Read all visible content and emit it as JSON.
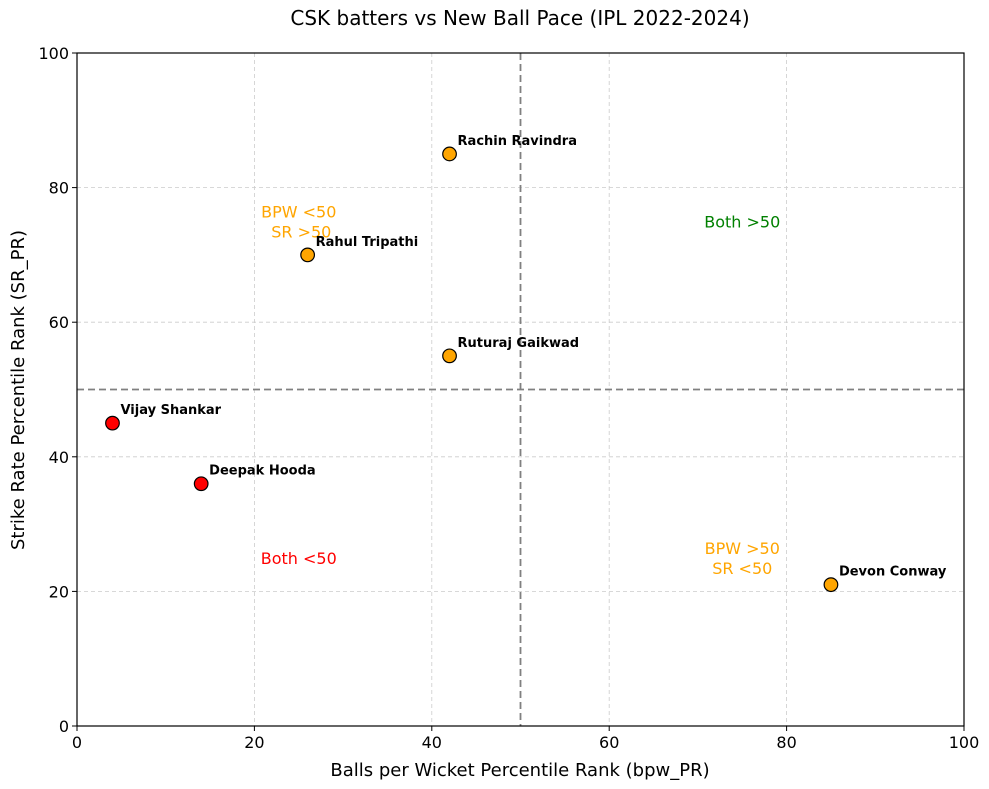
{
  "chart_data": {
    "type": "scatter",
    "title": "CSK batters vs New Ball Pace (IPL 2022-2024)",
    "xlabel": "Balls per Wicket Percentile Rank (bpw_PR)",
    "ylabel": "Strike Rate Percentile Rank (SR_PR)",
    "xlim": [
      0,
      100
    ],
    "ylim": [
      0,
      100
    ],
    "xticks": [
      0,
      20,
      40,
      60,
      80,
      100
    ],
    "yticks": [
      0,
      20,
      40,
      60,
      80,
      100
    ],
    "xtick_labels": [
      "0",
      "20",
      "40",
      "60",
      "80",
      "100"
    ],
    "ytick_labels": [
      "0",
      "20",
      "40",
      "60",
      "80",
      "100"
    ],
    "grid": true,
    "reference_lines": {
      "x": 50,
      "y": 50,
      "color": "#808080",
      "style": "dashed"
    },
    "points": [
      {
        "name": "Rachin Ravindra",
        "x": 42,
        "y": 85,
        "color": "#FFA500"
      },
      {
        "name": "Rahul Tripathi",
        "x": 26,
        "y": 70,
        "color": "#FFA500"
      },
      {
        "name": "Ruturaj Gaikwad",
        "x": 42,
        "y": 55,
        "color": "#FFA500"
      },
      {
        "name": "Vijay Shankar",
        "x": 4,
        "y": 45,
        "color": "#FF0000"
      },
      {
        "name": "Deepak Hooda",
        "x": 14,
        "y": 36,
        "color": "#FF0000"
      },
      {
        "name": "Devon Conway",
        "x": 85,
        "y": 21,
        "color": "#FFA500"
      }
    ],
    "annotations": [
      {
        "lines": [
          "BPW <50",
          " SR >50"
        ],
        "x": 25,
        "y": 75,
        "color": "#FFA500"
      },
      {
        "lines": [
          "Both >50"
        ],
        "x": 75,
        "y": 75,
        "color": "#008000"
      },
      {
        "lines": [
          "Both <50"
        ],
        "x": 25,
        "y": 25,
        "color": "#FF0000"
      },
      {
        "lines": [
          "BPW >50",
          "SR <50"
        ],
        "x": 75,
        "y": 25,
        "color": "#FFA500"
      }
    ]
  }
}
